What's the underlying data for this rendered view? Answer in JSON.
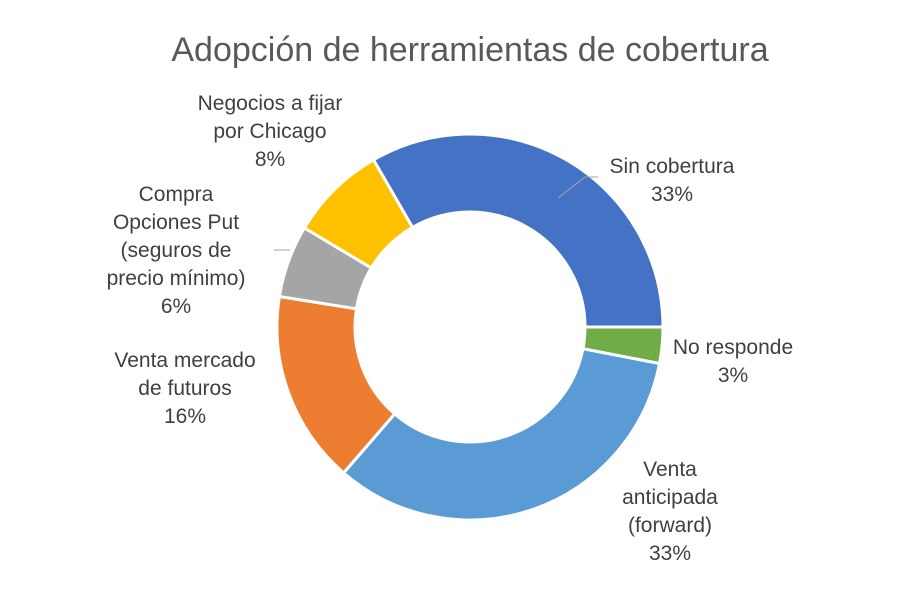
{
  "chart_data": {
    "type": "pie",
    "variant": "doughnut",
    "title": "Adopción de herramientas de cobertura",
    "categories": [
      "Sin cobertura",
      "No responde",
      "Venta anticipada (forward)",
      "Venta mercado de futuros",
      "Compra Opciones Put (seguros de precio mínimo)",
      "Negocios a fijar por Chicago"
    ],
    "values": [
      33,
      3,
      33,
      16,
      6,
      8
    ],
    "labels": [
      {
        "lines": [
          "Sin cobertura",
          "33%"
        ]
      },
      {
        "lines": [
          "No responde",
          "3%"
        ]
      },
      {
        "lines": [
          "Venta",
          "anticipada",
          "(forward)",
          "33%"
        ]
      },
      {
        "lines": [
          "Venta mercado",
          "de futuros",
          "16%"
        ]
      },
      {
        "lines": [
          "Compra",
          "Opciones Put",
          "(seguros de",
          "precio mínimo)",
          "6%"
        ]
      },
      {
        "lines": [
          "Negocios a fijar",
          "por Chicago",
          "8%"
        ]
      }
    ],
    "colors": [
      "#4472C4",
      "#70AD47",
      "#5B9BD5",
      "#ED7D31",
      "#A5A5A5",
      "#FFC000"
    ],
    "legend": "none",
    "grid": false
  }
}
